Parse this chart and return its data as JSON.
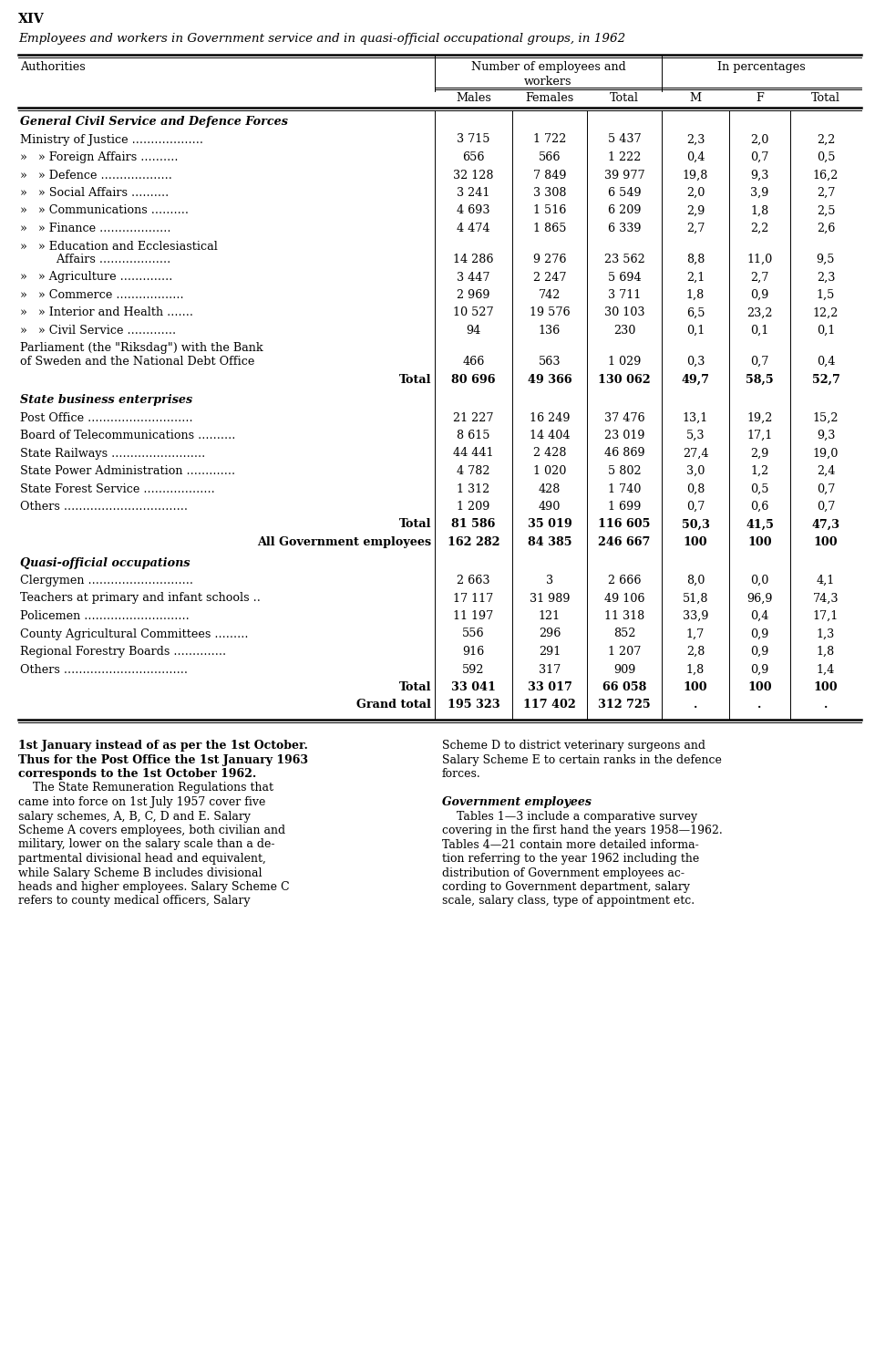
{
  "page_label": "XIV",
  "title": "Employees and workers in Government service and in quasi-official occupational groups, in 1962",
  "rows": [
    {
      "label": "General Civil Service and Defence Forces",
      "type": "section_header",
      "vals": null
    },
    {
      "label": "Ministry of Justice ...................",
      "type": "data",
      "vals": [
        "3 715",
        "1 722",
        "5 437",
        "2,3",
        "2,0",
        "2,2"
      ]
    },
    {
      "label": "»   » Foreign Affairs ..........",
      "type": "data",
      "vals": [
        "656",
        "566",
        "1 222",
        "0,4",
        "0,7",
        "0,5"
      ]
    },
    {
      "label": "»   » Defence ...................",
      "type": "data",
      "vals": [
        "32 128",
        "7 849",
        "39 977",
        "19,8",
        "9,3",
        "16,2"
      ]
    },
    {
      "label": "»   » Social Affairs ..........",
      "type": "data",
      "vals": [
        "3 241",
        "3 308",
        "6 549",
        "2,0",
        "3,9",
        "2,7"
      ]
    },
    {
      "label": "»   » Communications ..........",
      "type": "data",
      "vals": [
        "4 693",
        "1 516",
        "6 209",
        "2,9",
        "1,8",
        "2,5"
      ]
    },
    {
      "label": "»   » Finance ...................",
      "type": "data",
      "vals": [
        "4 474",
        "1 865",
        "6 339",
        "2,7",
        "2,2",
        "2,6"
      ]
    },
    {
      "label": "»   » Education and Ecclesiastical",
      "type": "data_line1",
      "vals": null
    },
    {
      "label": "          Affairs ...................",
      "type": "data_line2",
      "vals": [
        "14 286",
        "9 276",
        "23 562",
        "8,8",
        "11,0",
        "9,5"
      ]
    },
    {
      "label": "»   » Agriculture ..............",
      "type": "data",
      "vals": [
        "3 447",
        "2 247",
        "5 694",
        "2,1",
        "2,7",
        "2,3"
      ]
    },
    {
      "label": "»   » Commerce ..................",
      "type": "data",
      "vals": [
        "2 969",
        "742",
        "3 711",
        "1,8",
        "0,9",
        "1,5"
      ]
    },
    {
      "label": "»   » Interior and Health .......",
      "type": "data",
      "vals": [
        "10 527",
        "19 576",
        "30 103",
        "6,5",
        "23,2",
        "12,2"
      ]
    },
    {
      "label": "»   » Civil Service .............",
      "type": "data",
      "vals": [
        "94",
        "136",
        "230",
        "0,1",
        "0,1",
        "0,1"
      ]
    },
    {
      "label": "Parliament (the \"Riksdag\") with the Bank",
      "type": "data_line1",
      "vals": null
    },
    {
      "label": "of Sweden and the National Debt Office",
      "type": "data_line2",
      "vals": [
        "466",
        "563",
        "1 029",
        "0,3",
        "0,7",
        "0,4"
      ]
    },
    {
      "label": "Total",
      "type": "total",
      "vals": [
        "80 696",
        "49 366",
        "130 062",
        "49,7",
        "58,5",
        "52,7"
      ]
    },
    {
      "label": "State business enterprises",
      "type": "section_header",
      "vals": null
    },
    {
      "label": "Post Office ............................",
      "type": "data",
      "vals": [
        "21 227",
        "16 249",
        "37 476",
        "13,1",
        "19,2",
        "15,2"
      ]
    },
    {
      "label": "Board of Telecommunications ..........",
      "type": "data",
      "vals": [
        "8 615",
        "14 404",
        "23 019",
        "5,3",
        "17,1",
        "9,3"
      ]
    },
    {
      "label": "State Railways .........................",
      "type": "data",
      "vals": [
        "44 441",
        "2 428",
        "46 869",
        "27,4",
        "2,9",
        "19,0"
      ]
    },
    {
      "label": "State Power Administration .............",
      "type": "data",
      "vals": [
        "4 782",
        "1 020",
        "5 802",
        "3,0",
        "1,2",
        "2,4"
      ]
    },
    {
      "label": "State Forest Service ...................",
      "type": "data",
      "vals": [
        "1 312",
        "428",
        "1 740",
        "0,8",
        "0,5",
        "0,7"
      ]
    },
    {
      "label": "Others .................................",
      "type": "data",
      "vals": [
        "1 209",
        "490",
        "1 699",
        "0,7",
        "0,6",
        "0,7"
      ]
    },
    {
      "label": "Total",
      "type": "total",
      "vals": [
        "81 586",
        "35 019",
        "116 605",
        "50,3",
        "41,5",
        "47,3"
      ]
    },
    {
      "label": "All Government employees",
      "type": "grand_subtotal",
      "vals": [
        "162 282",
        "84 385",
        "246 667",
        "100",
        "100",
        "100"
      ]
    },
    {
      "label": "Quasi-official occupations",
      "type": "section_header",
      "vals": null
    },
    {
      "label": "Clergymen ............................",
      "type": "data",
      "vals": [
        "2 663",
        "3",
        "2 666",
        "8,0",
        "0,0",
        "4,1"
      ]
    },
    {
      "label": "Teachers at primary and infant schools ..",
      "type": "data",
      "vals": [
        "17 117",
        "31 989",
        "49 106",
        "51,8",
        "96,9",
        "74,3"
      ]
    },
    {
      "label": "Policemen ............................",
      "type": "data",
      "vals": [
        "11 197",
        "121",
        "11 318",
        "33,9",
        "0,4",
        "17,1"
      ]
    },
    {
      "label": "County Agricultural Committees .........",
      "type": "data",
      "vals": [
        "556",
        "296",
        "852",
        "1,7",
        "0,9",
        "1,3"
      ]
    },
    {
      "label": "Regional Forestry Boards ..............",
      "type": "data",
      "vals": [
        "916",
        "291",
        "1 207",
        "2,8",
        "0,9",
        "1,8"
      ]
    },
    {
      "label": "Others .................................",
      "type": "data",
      "vals": [
        "592",
        "317",
        "909",
        "1,8",
        "0,9",
        "1,4"
      ]
    },
    {
      "label": "Total",
      "type": "total",
      "vals": [
        "33 041",
        "33 017",
        "66 058",
        "100",
        "100",
        "100"
      ]
    },
    {
      "label": "Grand total",
      "type": "grand_total",
      "vals": [
        "195 323",
        "117 402",
        "312 725",
        ".",
        ".",
        "."
      ]
    }
  ],
  "footer_left_bold": [
    "1st January instead of as per the 1st October.",
    "Thus for the Post Office the 1st January 1963",
    "corresponds to the 1st October 1962."
  ],
  "footer_left_normal": [
    "    The State Remuneration Regulations that",
    "came into force on 1st July 1957 cover five",
    "salary schemes, A, B, C, D and E. Salary",
    "Scheme A covers employees, both civilian and",
    "military, lower on the salary scale than a de-",
    "partmental divisional head and equivalent,",
    "while Salary Scheme B includes divisional",
    "heads and higher employees. Salary Scheme C",
    "refers to county medical officers, Salary"
  ],
  "footer_right_normal1": [
    "Scheme D to district veterinary surgeons and",
    "Salary Scheme E to certain ranks in the defence",
    "forces.",
    ""
  ],
  "footer_right_header": "Government employees",
  "footer_right_normal2": [
    "    Tables 1—3 include a comparative survey",
    "covering in the first hand the years 1958—1962.",
    "Tables 4—21 contain more detailed informa-",
    "tion referring to the year 1962 including the",
    "distribution of Government employees ac-",
    "cording to Government department, salary",
    "scale, salary class, type of appointment etc."
  ]
}
